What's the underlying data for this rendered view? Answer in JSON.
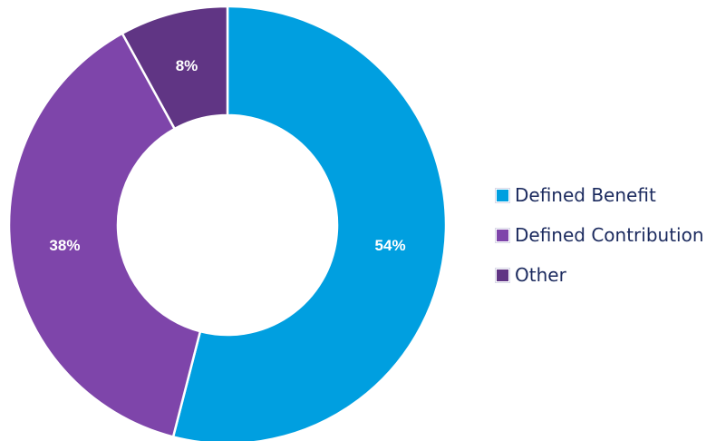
{
  "chart_data": {
    "type": "pie",
    "donut": true,
    "title": "",
    "categories": [
      "Defined Benefit",
      "Defined Contribution",
      "Other"
    ],
    "values": [
      54,
      38,
      8
    ],
    "value_labels": [
      "54%",
      "38%",
      "8%"
    ],
    "colors": [
      "#009fe0",
      "#7e45aa",
      "#603584"
    ],
    "legend_position": "right",
    "start_angle_deg": 0,
    "direction": "clockwise"
  }
}
